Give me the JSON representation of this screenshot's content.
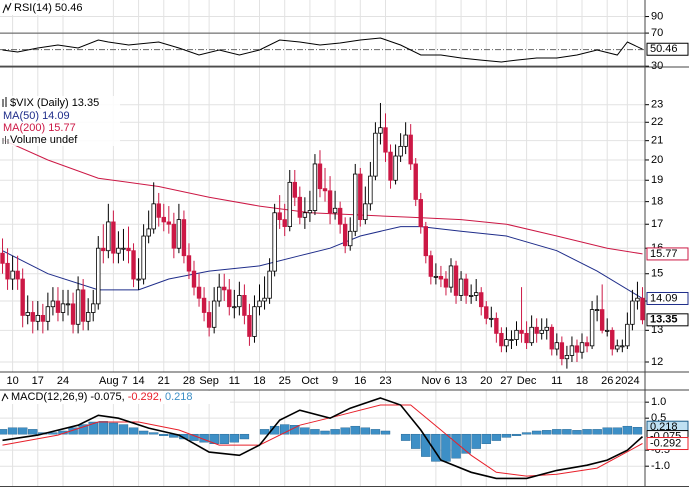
{
  "chart_data": {
    "type": "stock",
    "xaxis": {
      "xlim": [
        -0.5,
        127.5
      ],
      "xticks": [
        {
          "value": 2,
          "label": "10"
        },
        {
          "value": 7,
          "label": "17"
        },
        {
          "value": 12,
          "label": "24"
        },
        {
          "value": 22,
          "label": "Aug 7"
        },
        {
          "value": 27,
          "label": "14"
        },
        {
          "value": 32,
          "label": "21"
        },
        {
          "value": 37,
          "label": "28"
        },
        {
          "value": 41,
          "label": "Sep"
        },
        {
          "value": 46,
          "label": "11"
        },
        {
          "value": 51,
          "label": "18"
        },
        {
          "value": 56,
          "label": "25"
        },
        {
          "value": 61,
          "label": "Oct"
        },
        {
          "value": 66,
          "label": "9"
        },
        {
          "value": 71,
          "label": "16"
        },
        {
          "value": 76,
          "label": "23"
        },
        {
          "value": 86,
          "label": "Nov 6"
        },
        {
          "value": 91,
          "label": "13"
        },
        {
          "value": 96,
          "label": "20"
        },
        {
          "value": 100,
          "label": "27"
        },
        {
          "value": 104,
          "label": "Dec"
        },
        {
          "value": 110,
          "label": "11"
        },
        {
          "value": 115,
          "label": "18"
        },
        {
          "value": 120,
          "label": "26"
        },
        {
          "value": 124,
          "label": "2024"
        }
      ]
    },
    "rsi": {
      "name": "RSI(14)",
      "color": "#000000",
      "ylim": [
        29,
        110
      ],
      "yticks": [
        30,
        70,
        90
      ],
      "midline": 50,
      "x": [
        0,
        3,
        7,
        11,
        15,
        19,
        21,
        25,
        31,
        35,
        39,
        43,
        47,
        51,
        55,
        59,
        63,
        67,
        71,
        75,
        79,
        83,
        87,
        91,
        95,
        99,
        102,
        106,
        110,
        114,
        118,
        122,
        124,
        127
      ],
      "values": [
        49.5,
        47.1,
        52,
        55.6,
        52,
        61.6,
        59.2,
        55.6,
        59.2,
        52,
        43.5,
        49.5,
        43.5,
        49.5,
        61.6,
        59.2,
        55.6,
        58,
        61.6,
        64,
        55.6,
        43.5,
        43.5,
        39.9,
        37.4,
        35,
        37.4,
        39.9,
        39.9,
        43.5,
        49.5,
        43.5,
        59.2,
        50.46
      ]
    },
    "price": {
      "name": "$VIX (Daily)",
      "log": true,
      "ylim": [
        11.7,
        25.3
      ],
      "yticks": [
        12,
        13,
        14,
        15,
        16,
        17,
        18,
        19,
        20,
        21,
        22,
        23
      ],
      "up_color": "#000000",
      "down_color": "#cc1845",
      "volume_label": "Volume undef",
      "open": [
        15.8,
        15.4,
        14.8,
        15.1,
        14.8,
        13.5,
        13.6,
        13.3,
        13.5,
        13.3,
        13.8,
        14.0,
        13.6,
        13.9,
        13.9,
        13.2,
        14.4,
        13.3,
        13.6,
        13.9,
        16.0,
        15.9,
        17.1,
        15.8,
        16.0,
        16.0,
        15.9,
        14.8,
        14.8,
        16.5,
        16.8,
        17.9,
        17.3,
        17.1,
        17.0,
        16.0,
        17.2,
        15.7,
        15.1,
        14.5,
        14.1,
        13.6,
        13.1,
        14.0,
        14.5,
        14.4,
        13.8,
        13.8,
        14.2,
        13.5,
        12.8,
        13.8,
        14.0,
        14.1,
        15.1,
        17.5,
        17.2,
        16.9,
        18.9,
        18.2,
        17.3,
        17.5,
        17.6,
        19.8,
        18.6,
        18.5,
        17.5,
        17.7,
        17.0,
        16.1,
        16.7,
        19.3,
        17.2,
        17.9,
        19.2,
        21.4,
        21.7,
        20.4,
        19.0,
        20.2,
        20.7,
        21.3,
        19.8,
        18.1,
        16.9,
        15.7,
        14.9,
        14.9,
        14.8,
        14.5,
        15.3,
        14.2,
        14.8,
        14.2,
        14.2,
        14.3,
        13.8,
        13.4,
        13.4,
        12.9,
        12.5,
        12.7,
        12.7,
        13.0,
        12.9,
        12.6,
        13.1,
        12.9,
        13.0,
        13.1,
        12.4,
        12.6,
        12.1,
        12.2,
        12.5,
        12.3,
        12.6,
        12.5,
        13.7,
        13.7,
        13.0,
        13.0,
        12.4,
        12.5,
        12.5,
        13.2,
        14.0,
        14.1
      ],
      "high": [
        16.4,
        16.0,
        15.7,
        15.7,
        15.2,
        14.2,
        14.0,
        14.0,
        13.9,
        14.3,
        14.5,
        14.5,
        14.4,
        14.4,
        14.3,
        14.9,
        14.8,
        14.1,
        14.4,
        16.5,
        17.0,
        17.9,
        17.6,
        16.7,
        16.8,
        16.9,
        16.2,
        15.6,
        17.0,
        17.6,
        18.9,
        18.4,
        17.9,
        17.8,
        17.5,
        17.9,
        17.6,
        16.2,
        15.5,
        15.0,
        14.5,
        14.0,
        14.5,
        15.0,
        15.0,
        14.8,
        14.4,
        14.7,
        14.6,
        13.9,
        14.2,
        14.6,
        14.9,
        15.6,
        17.9,
        18.3,
        17.9,
        19.5,
        19.5,
        18.7,
        18.2,
        18.5,
        20.3,
        20.5,
        19.6,
        19.2,
        18.5,
        18.0,
        17.3,
        17.3,
        19.8,
        19.6,
        18.7,
        19.9,
        22.0,
        23.1,
        22.5,
        20.8,
        20.8,
        21.4,
        22.0,
        21.9,
        20.1,
        18.4,
        17.1,
        15.9,
        15.4,
        15.3,
        15.1,
        15.6,
        15.5,
        15.1,
        15.0,
        14.6,
        14.8,
        14.5,
        14.0,
        13.8,
        13.6,
        13.1,
        13.1,
        13.0,
        13.3,
        14.5,
        13.3,
        13.5,
        13.4,
        13.4,
        13.4,
        13.2,
        12.9,
        12.8,
        12.5,
        12.8,
        12.7,
        12.9,
        12.8,
        14.0,
        14.2,
        14.6,
        13.4,
        13.1,
        12.7,
        12.7,
        13.6,
        14.4,
        14.7,
        14.5
      ],
      "low": [
        15.0,
        14.4,
        14.4,
        14.4,
        13.1,
        13.2,
        12.9,
        13.0,
        12.9,
        13.0,
        13.5,
        13.3,
        13.3,
        13.5,
        12.9,
        12.9,
        13.0,
        13.0,
        13.3,
        13.7,
        15.4,
        15.6,
        15.4,
        15.4,
        15.5,
        15.4,
        14.5,
        14.4,
        14.6,
        16.2,
        16.6,
        16.9,
        16.7,
        16.6,
        15.6,
        15.8,
        15.4,
        14.8,
        14.2,
        13.8,
        13.3,
        12.8,
        12.9,
        13.8,
        14.0,
        13.5,
        13.4,
        13.5,
        13.2,
        12.5,
        12.6,
        13.5,
        13.7,
        13.9,
        14.9,
        16.8,
        16.5,
        16.7,
        17.8,
        17.0,
        16.8,
        17.1,
        17.4,
        18.2,
        18.0,
        17.0,
        17.2,
        16.6,
        15.8,
        15.9,
        16.5,
        16.9,
        17.0,
        17.6,
        19.0,
        20.8,
        19.9,
        18.6,
        18.8,
        19.9,
        20.3,
        19.5,
        17.8,
        16.6,
        15.4,
        14.6,
        14.6,
        14.5,
        14.2,
        14.3,
        13.9,
        14.0,
        13.9,
        13.9,
        14.0,
        13.5,
        13.2,
        13.1,
        12.6,
        12.3,
        12.3,
        12.4,
        12.5,
        12.6,
        12.4,
        12.5,
        12.6,
        12.7,
        12.7,
        12.2,
        12.2,
        11.9,
        11.8,
        12.0,
        12.0,
        12.1,
        12.3,
        12.4,
        13.3,
        12.9,
        12.8,
        12.2,
        12.3,
        12.3,
        12.4,
        13.0,
        13.7,
        13.2
      ],
      "close": [
        15.4,
        14.8,
        15.1,
        14.8,
        13.5,
        13.6,
        13.3,
        13.5,
        13.3,
        13.8,
        14.0,
        13.6,
        13.9,
        13.9,
        13.2,
        14.4,
        13.3,
        13.6,
        13.9,
        16.0,
        15.9,
        17.1,
        15.8,
        16.0,
        16.0,
        15.9,
        14.8,
        14.8,
        16.5,
        16.8,
        17.9,
        17.3,
        17.1,
        17.0,
        16.0,
        17.2,
        15.7,
        15.1,
        14.5,
        14.1,
        13.6,
        13.1,
        14.0,
        14.5,
        14.4,
        13.8,
        13.8,
        14.2,
        13.5,
        12.8,
        13.8,
        14.0,
        14.1,
        15.1,
        17.5,
        17.2,
        16.9,
        18.9,
        18.2,
        17.3,
        17.5,
        17.6,
        19.8,
        18.6,
        18.5,
        17.5,
        17.7,
        17.0,
        16.1,
        16.7,
        19.3,
        17.2,
        17.9,
        19.2,
        21.4,
        21.7,
        20.4,
        19.0,
        20.2,
        20.7,
        21.3,
        19.8,
        18.1,
        16.9,
        15.7,
        14.9,
        14.9,
        14.8,
        14.5,
        15.3,
        14.2,
        14.8,
        14.2,
        14.2,
        14.3,
        13.8,
        13.4,
        13.4,
        12.9,
        12.5,
        12.7,
        12.7,
        13.0,
        12.9,
        12.6,
        13.1,
        12.9,
        13.0,
        13.1,
        12.4,
        12.6,
        12.1,
        12.2,
        12.5,
        12.3,
        12.6,
        12.5,
        13.7,
        13.7,
        13.0,
        13.0,
        12.4,
        12.5,
        12.5,
        13.2,
        14.0,
        14.1,
        13.35
      ],
      "ma": [
        {
          "name": "MA(50)",
          "color": "#1f2d8a",
          "x": [
            0,
            9,
            19,
            27,
            33,
            41,
            51,
            59,
            65,
            71,
            79,
            83,
            91,
            100,
            110,
            118,
            127
          ],
          "values": [
            15.9,
            15.0,
            14.4,
            14.4,
            14.8,
            15.1,
            15.3,
            15.7,
            16.0,
            16.5,
            16.9,
            16.9,
            16.7,
            16.5,
            15.9,
            15.1,
            14.09
          ]
        },
        {
          "name": "MA(200)",
          "color": "#cc1845",
          "x": [
            0,
            9,
            19,
            31,
            41,
            51,
            61,
            71,
            81,
            91,
            100,
            110,
            120,
            127
          ],
          "values": [
            21.05,
            20.0,
            19.1,
            18.7,
            18.2,
            17.8,
            17.5,
            17.4,
            17.3,
            17.2,
            17.0,
            16.5,
            16.0,
            15.77
          ]
        }
      ]
    },
    "macd": {
      "name": "MACD(12,26,9)",
      "separator": ",",
      "ylim": [
        -1.65,
        1.38
      ],
      "yticks": [
        {
          "value": -1,
          "label": "-1.0"
        },
        -0.5,
        0.5,
        {
          "value": 1,
          "label": "1.0"
        }
      ],
      "macd": {
        "color": "#000000",
        "x": [
          0,
          7,
          15,
          19,
          23,
          29,
          35,
          41,
          47,
          51,
          55,
          59,
          65,
          69,
          75,
          79,
          83,
          87,
          93,
          98,
          104,
          110,
          116,
          120,
          124,
          127
        ],
        "values": [
          -0.19,
          -0.03,
          0.28,
          0.59,
          0.5,
          0.19,
          -0.03,
          -0.56,
          -0.66,
          -0.34,
          0.44,
          0.75,
          0.5,
          0.81,
          1.13,
          0.91,
          0.13,
          -0.81,
          -1.19,
          -1.38,
          -1.38,
          -1.13,
          -0.97,
          -0.81,
          -0.5,
          -0.075
        ]
      },
      "signal": {
        "color": "#e8202a",
        "x": [
          0,
          11,
          19,
          27,
          35,
          43,
          51,
          59,
          67,
          75,
          81,
          87,
          93,
          98,
          104,
          110,
          118,
          127
        ],
        "values": [
          -0.34,
          -0.03,
          0.38,
          0.38,
          0.13,
          -0.34,
          -0.34,
          0.28,
          0.59,
          0.91,
          0.91,
          0.13,
          -0.66,
          -1.19,
          -1.31,
          -1.25,
          -1.06,
          -0.292
        ]
      },
      "histogram": {
        "color": "#3d8fc6",
        "x": [
          0,
          2,
          4,
          6,
          8,
          10,
          12,
          14,
          16,
          18,
          20,
          22,
          24,
          26,
          28,
          30,
          32,
          34,
          36,
          38,
          40,
          42,
          44,
          46,
          48,
          50,
          52,
          54,
          56,
          58,
          60,
          62,
          64,
          66,
          68,
          70,
          72,
          74,
          76,
          78,
          80,
          82,
          84,
          86,
          88,
          90,
          92,
          94,
          96,
          98,
          100,
          102,
          104,
          106,
          108,
          110,
          112,
          114,
          116,
          118,
          120,
          122,
          124,
          126
        ],
        "values": [
          0.15,
          0.2,
          0.2,
          0.15,
          0.05,
          0.05,
          0.1,
          0.2,
          0.3,
          0.38,
          0.4,
          0.35,
          0.3,
          0.2,
          0.1,
          0.05,
          -0.05,
          -0.1,
          -0.15,
          -0.2,
          -0.25,
          -0.3,
          -0.3,
          -0.25,
          -0.15,
          0.0,
          0.15,
          0.25,
          0.3,
          0.28,
          0.2,
          0.15,
          0.1,
          0.15,
          0.2,
          0.25,
          0.2,
          0.15,
          0.1,
          0.0,
          -0.2,
          -0.45,
          -0.7,
          -0.85,
          -0.85,
          -0.75,
          -0.6,
          -0.45,
          -0.3,
          -0.2,
          -0.1,
          -0.05,
          0.05,
          0.1,
          0.12,
          0.15,
          0.15,
          0.12,
          0.15,
          0.15,
          0.2,
          0.2,
          0.25,
          0.218
        ]
      }
    }
  }
}
